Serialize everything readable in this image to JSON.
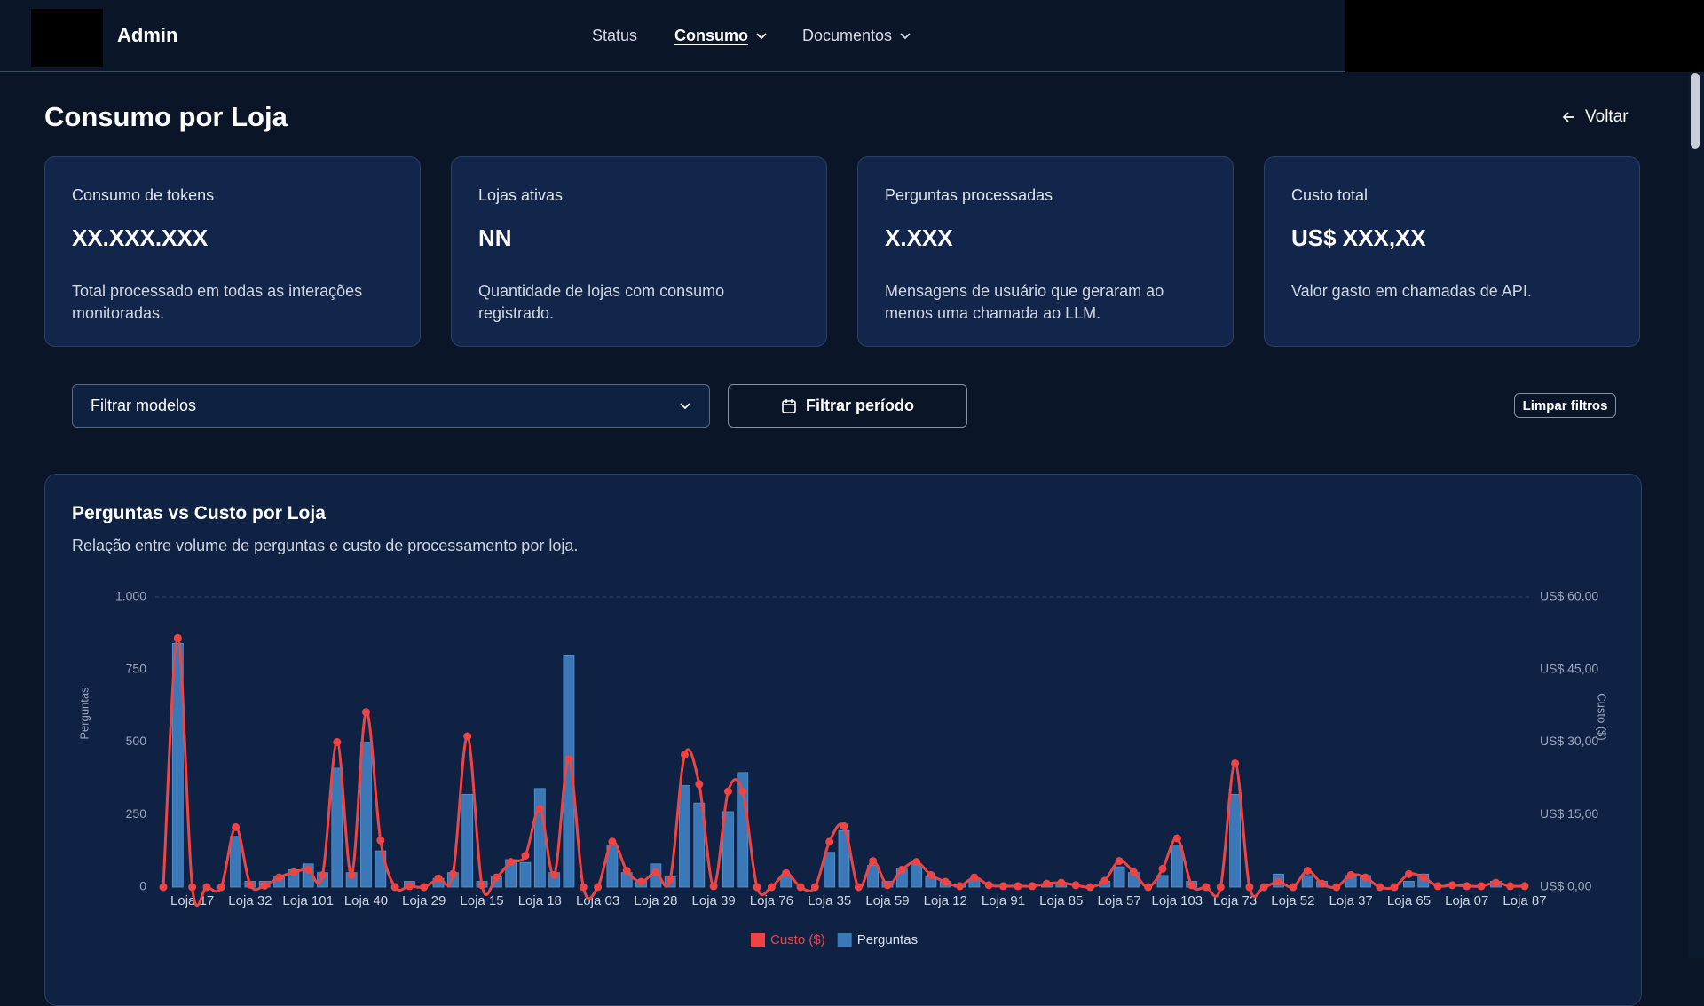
{
  "nav": {
    "brand": "Admin",
    "items": [
      "Status",
      "Consumo",
      "Documentos"
    ]
  },
  "page": {
    "title": "Consumo por Loja",
    "back": "Voltar"
  },
  "cards": [
    {
      "label": "Consumo de tokens",
      "value": "XX.XXX.XXX",
      "description": "Total processado em todas as interações monitoradas."
    },
    {
      "label": "Lojas ativas",
      "value": "NN",
      "description": "Quantidade de lojas com consumo registrado."
    },
    {
      "label": "Perguntas processadas",
      "value": "X.XXX",
      "description": "Mensagens de usuário que geraram ao menos uma chamada ao LLM."
    },
    {
      "label": "Custo total",
      "value": "US$ XXX,XX",
      "description": "Valor gasto em chamadas de API."
    }
  ],
  "filters": {
    "models": "Filtrar modelos",
    "period": "Filtrar período",
    "clear": "Limpar filtros"
  },
  "chart_data": {
    "type": "bar",
    "title": "Perguntas vs Custo por Loja",
    "subtitle": "Relação entre volume de perguntas e custo de processamento por loja.",
    "y_label": "Perguntas",
    "y2_label": "Custo ($)",
    "categories": [
      null,
      null,
      "Loja 17",
      null,
      null,
      null,
      "Loja 32",
      null,
      null,
      null,
      "Loja 101",
      null,
      null,
      null,
      "Loja 40",
      null,
      null,
      null,
      "Loja 29",
      null,
      null,
      null,
      "Loja 15",
      null,
      null,
      null,
      "Loja 18",
      null,
      null,
      null,
      "Loja 03",
      null,
      null,
      null,
      "Loja 28",
      null,
      null,
      null,
      "Loja 39",
      null,
      null,
      null,
      "Loja 76",
      null,
      null,
      null,
      "Loja 35",
      null,
      null,
      null,
      "Loja 59",
      null,
      null,
      null,
      "Loja 12",
      null,
      null,
      null,
      "Loja 91",
      null,
      null,
      null,
      "Loja 85",
      null,
      null,
      null,
      "Loja 57",
      null,
      null,
      null,
      "Loja 103",
      null,
      null,
      null,
      "Loja 73",
      null,
      null,
      null,
      "Loja 52",
      null,
      null,
      null,
      "Loja 37",
      null,
      null,
      null,
      "Loja 65",
      null,
      null,
      null,
      "Loja 07",
      null,
      null,
      null,
      "Loja 87"
    ],
    "series": [
      {
        "name": "Custo ($)",
        "color": "#ef4444",
        "type": "line",
        "axis": "y2",
        "values": [
          0,
          51.5,
          0,
          0,
          0,
          12.4,
          0.5,
          0.3,
          2,
          3.1,
          3.6,
          2.5,
          30,
          2.5,
          36.2,
          9.7,
          0,
          0.2,
          0,
          1.8,
          2.7,
          31.2,
          0.4,
          2,
          5.2,
          6.5,
          16.2,
          2.5,
          26.5,
          0,
          0,
          9.4,
          3.4,
          1.1,
          3.1,
          1.6,
          27.4,
          21.3,
          0.2,
          19.8,
          19.8,
          0,
          0,
          2.9,
          0,
          0,
          9.4,
          12.6,
          0,
          5.4,
          0.4,
          3.6,
          5.2,
          2.5,
          1.1,
          0.2,
          2,
          0.4,
          0.2,
          0.2,
          0.2,
          0.7,
          0.9,
          0.4,
          0,
          1.3,
          5.4,
          3.1,
          0,
          3.8,
          10.1,
          0.4,
          0,
          0,
          25.6,
          0,
          0,
          1.1,
          0,
          3.4,
          0.7,
          0,
          2.5,
          2,
          0,
          0,
          2.7,
          2,
          0.2,
          0.4,
          0.2,
          0.2,
          0.9,
          0.2,
          0.2
        ]
      },
      {
        "name": "Perguntas",
        "color": "#3b78b8",
        "type": "bar",
        "values": [
          0,
          840,
          0,
          0,
          0,
          175,
          20,
          20,
          35,
          60,
          80,
          50,
          410,
          50,
          500,
          125,
          0,
          20,
          0,
          30,
          50,
          320,
          20,
          35,
          95,
          85,
          340,
          50,
          800,
          0,
          0,
          145,
          50,
          20,
          80,
          35,
          350,
          290,
          0,
          260,
          395,
          0,
          0,
          40,
          0,
          0,
          120,
          195,
          0,
          75,
          20,
          65,
          80,
          35,
          20,
          8,
          25,
          0,
          0,
          0,
          0,
          10,
          10,
          0,
          0,
          20,
          70,
          50,
          0,
          40,
          145,
          20,
          0,
          0,
          320,
          0,
          0,
          45,
          0,
          40,
          20,
          0,
          40,
          40,
          0,
          0,
          20,
          45,
          0,
          0,
          0,
          0,
          20,
          0,
          0
        ]
      }
    ],
    "ylim": [
      0,
      1000
    ],
    "yticks": [
      0,
      250,
      500,
      750,
      {
        "value": 1000,
        "label": "1.000"
      }
    ],
    "y2lim": [
      0,
      60
    ],
    "y2ticks": [
      {
        "value": 0,
        "label": "US$ 0,00"
      },
      {
        "value": 15,
        "label": "US$ 15,00"
      },
      {
        "value": 30,
        "label": "US$ 30,00"
      },
      {
        "value": 45,
        "label": "US$ 45,00"
      },
      {
        "value": 60,
        "label": "US$ 60,00"
      }
    ],
    "grid": false,
    "legend": "bottom"
  }
}
